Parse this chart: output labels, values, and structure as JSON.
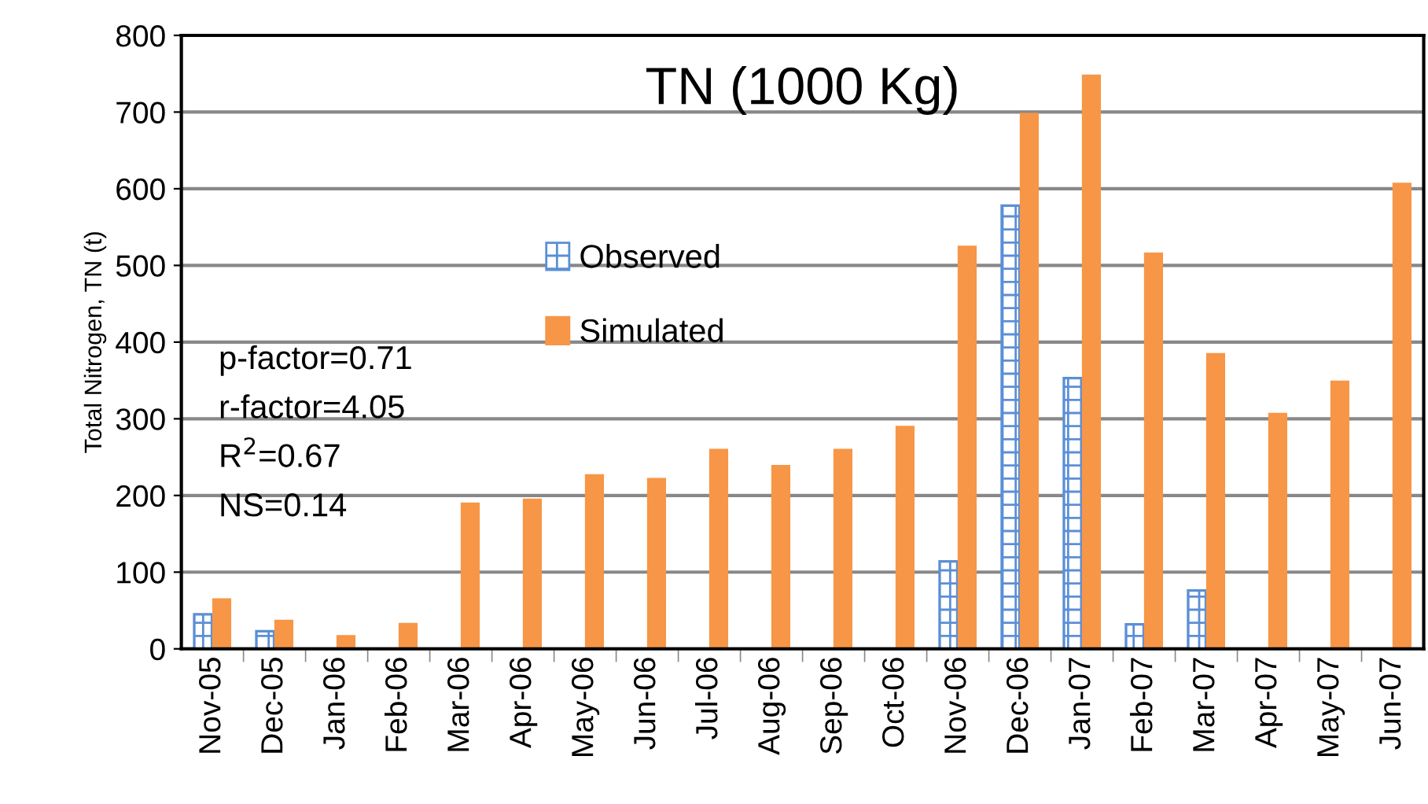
{
  "chart_data": {
    "type": "bar",
    "title": "TN (1000 Kg)",
    "ylabel": "Total Nitrogen, TN (t)",
    "categories": [
      "Nov-05",
      "Dec-05",
      "Jan-06",
      "Feb-06",
      "Mar-06",
      "Apr-06",
      "May-06",
      "Jun-06",
      "Jul-06",
      "Aug-06",
      "Sep-06",
      "Oct-06",
      "Nov-06",
      "Dec-06",
      "Jan-07",
      "Feb-07",
      "Mar-07",
      "Apr-07",
      "May-07",
      "Jun-07"
    ],
    "series": [
      {
        "name": "Observed",
        "color": "#5b8fd6",
        "values": [
          45,
          23,
          null,
          null,
          null,
          null,
          null,
          null,
          null,
          null,
          null,
          null,
          114,
          578,
          353,
          32,
          76,
          null,
          null,
          null
        ]
      },
      {
        "name": "Simulated",
        "color": "#f79646",
        "values": [
          65,
          37,
          17,
          33,
          190,
          195,
          227,
          222,
          260,
          239,
          260,
          290,
          525,
          698,
          748,
          516,
          385,
          307,
          349,
          607
        ]
      }
    ],
    "ylim": [
      0,
      800
    ],
    "yticks": [
      0,
      100,
      200,
      300,
      400,
      500,
      600,
      700,
      800
    ],
    "grid": "y",
    "legend": "top left",
    "annotations": [
      "p-factor=0.71",
      "r-factor=4.05",
      "R$^{2}$=0.67",
      "NS=0.14"
    ]
  }
}
